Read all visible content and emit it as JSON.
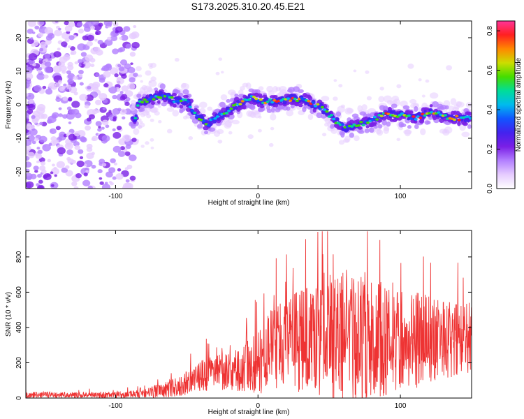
{
  "title": "S173.2025.310.20.45.E21",
  "colors": {
    "snr_line": "#ee3333",
    "colormap": [
      "#ffffff",
      "#e6ccff",
      "#b380ff",
      "#7a1fe6",
      "#4422ee",
      "#1155ff",
      "#00bbee",
      "#00dd99",
      "#44dd00",
      "#ccdd00",
      "#ff8800",
      "#ff2020",
      "#ff3399"
    ]
  },
  "chart_data": [
    {
      "type": "heatmap",
      "name": "spectrogram",
      "xlabel": "Height of straight line (km)",
      "ylabel": "Frequency (Hz)",
      "xlim": [
        -163,
        150
      ],
      "ylim": [
        -25,
        25
      ],
      "xticks": [
        -100,
        0,
        100
      ],
      "yticks": [
        -20,
        -10,
        0,
        10,
        20
      ],
      "colorbar": {
        "label": "Normalized spectral amplitude",
        "range": [
          0,
          0.85
        ],
        "ticks": [
          "0.0",
          "0.2",
          "0.4",
          "0.6",
          "0.8"
        ]
      },
      "ridge": [
        {
          "x": -85,
          "y": 0
        },
        {
          "x": -75,
          "y": 2
        },
        {
          "x": -65,
          "y": 3
        },
        {
          "x": -58,
          "y": 1
        },
        {
          "x": -50,
          "y": 1
        },
        {
          "x": -43,
          "y": -3
        },
        {
          "x": -36,
          "y": -6
        },
        {
          "x": -30,
          "y": -4
        },
        {
          "x": -22,
          "y": -2
        },
        {
          "x": -15,
          "y": 0
        },
        {
          "x": -5,
          "y": 2
        },
        {
          "x": 5,
          "y": 1
        },
        {
          "x": 15,
          "y": 1
        },
        {
          "x": 25,
          "y": 2
        },
        {
          "x": 35,
          "y": 1
        },
        {
          "x": 45,
          "y": -1
        },
        {
          "x": 55,
          "y": -5
        },
        {
          "x": 62,
          "y": -7
        },
        {
          "x": 70,
          "y": -6
        },
        {
          "x": 78,
          "y": -5
        },
        {
          "x": 88,
          "y": -3
        },
        {
          "x": 100,
          "y": -3
        },
        {
          "x": 110,
          "y": -4
        },
        {
          "x": 122,
          "y": -2
        },
        {
          "x": 135,
          "y": -4
        },
        {
          "x": 150,
          "y": -4
        }
      ]
    },
    {
      "type": "line",
      "name": "snr",
      "xlabel": "Height of straight line (km)",
      "ylabel": "SNR (10 * v/v)",
      "xlim": [
        -163,
        150
      ],
      "ylim": [
        0,
        950
      ],
      "xticks": [
        -100,
        0,
        100
      ],
      "yticks": [
        0,
        200,
        400,
        600,
        800
      ],
      "envelope": [
        {
          "x": -163,
          "mean": 18,
          "amp": 18
        },
        {
          "x": -100,
          "mean": 18,
          "amp": 18
        },
        {
          "x": -80,
          "mean": 25,
          "amp": 22
        },
        {
          "x": -70,
          "mean": 40,
          "amp": 40
        },
        {
          "x": -55,
          "mean": 70,
          "amp": 60
        },
        {
          "x": -45,
          "mean": 100,
          "amp": 80
        },
        {
          "x": -35,
          "mean": 140,
          "amp": 100
        },
        {
          "x": -20,
          "mean": 150,
          "amp": 110
        },
        {
          "x": -10,
          "mean": 160,
          "amp": 130
        },
        {
          "x": 0,
          "mean": 220,
          "amp": 200
        },
        {
          "x": 15,
          "mean": 300,
          "amp": 250
        },
        {
          "x": 30,
          "mean": 330,
          "amp": 300
        },
        {
          "x": 45,
          "mean": 350,
          "amp": 360
        },
        {
          "x": 60,
          "mean": 360,
          "amp": 400
        },
        {
          "x": 70,
          "mean": 350,
          "amp": 380
        },
        {
          "x": 90,
          "mean": 340,
          "amp": 330
        },
        {
          "x": 110,
          "mean": 330,
          "amp": 280
        },
        {
          "x": 130,
          "mean": 330,
          "amp": 220
        },
        {
          "x": 150,
          "mean": 340,
          "amp": 200
        }
      ],
      "max_value": 945
    }
  ]
}
